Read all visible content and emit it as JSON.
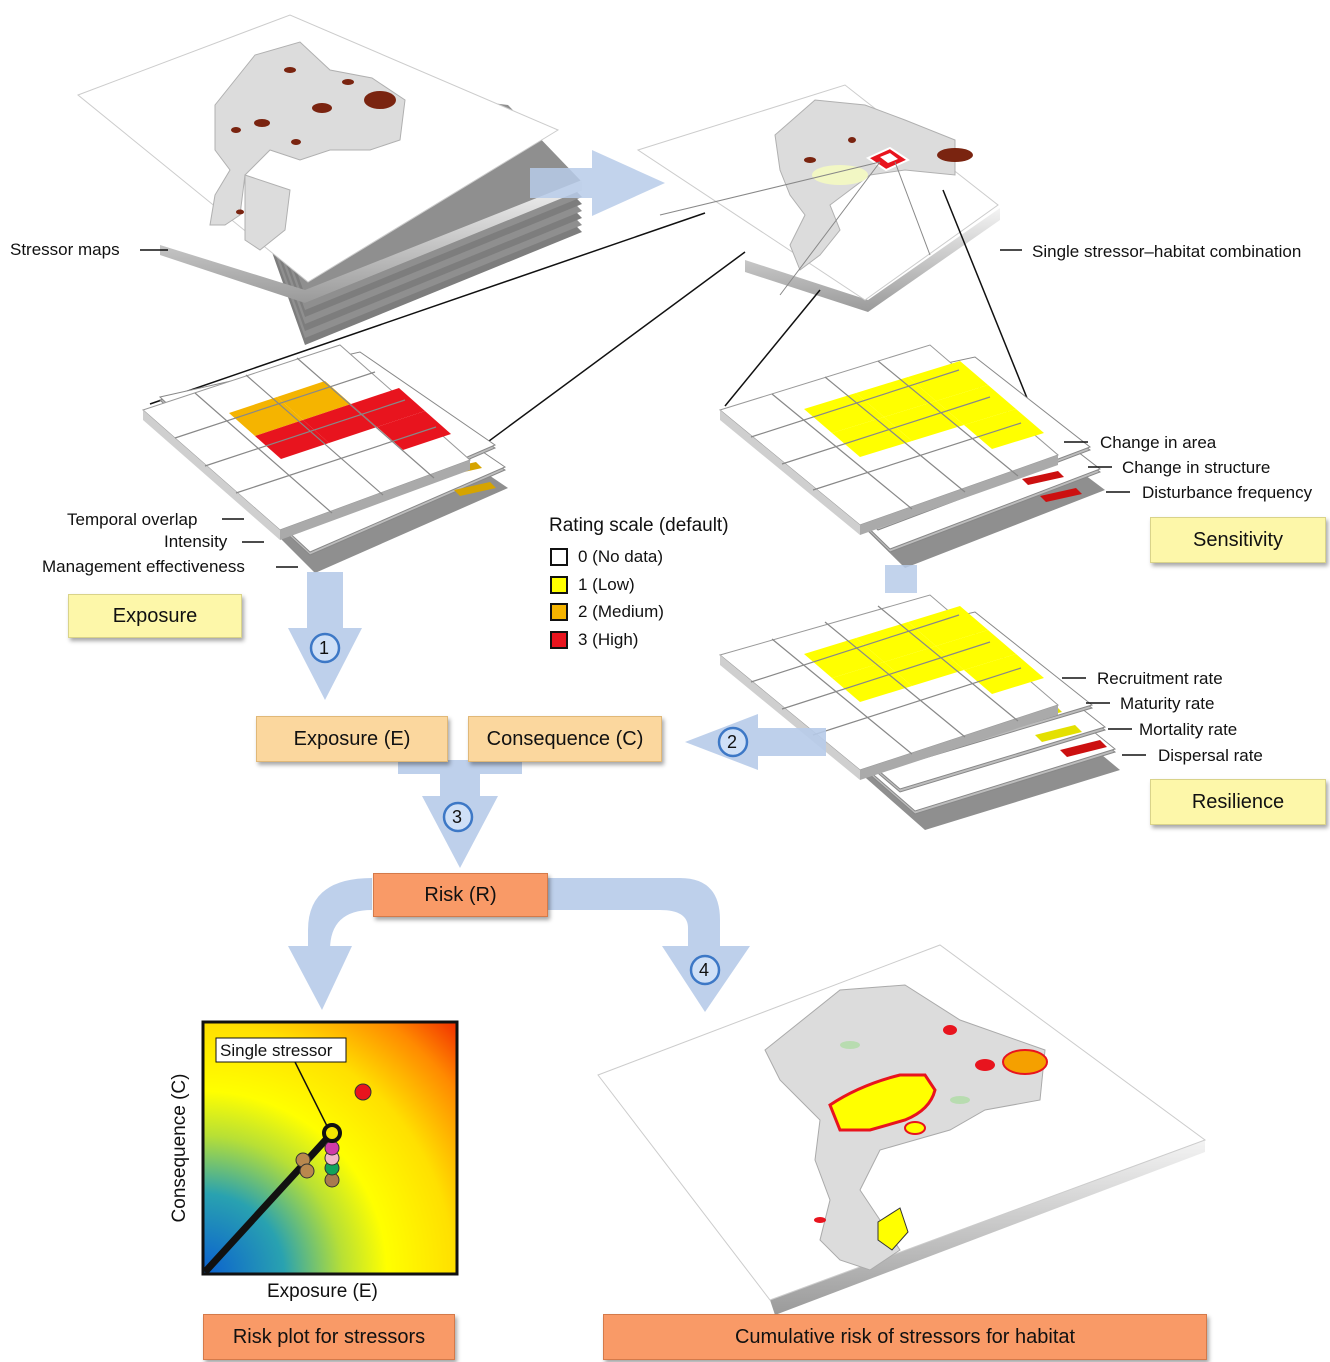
{
  "labels": {
    "stressor_maps": "Stressor maps",
    "single_combo": "Single stressor–habitat combination",
    "temporal_overlap": "Temporal overlap",
    "intensity": "Intensity",
    "management_effectiveness": "Management effectiveness",
    "change_area": "Change in area",
    "change_structure": "Change in structure",
    "disturbance_frequency": "Disturbance frequency",
    "recruitment_rate": "Recruitment rate",
    "maturity_rate": "Maturity rate",
    "mortality_rate": "Mortality rate",
    "dispersal_rate": "Dispersal rate"
  },
  "boxes": {
    "exposure": "Exposure",
    "sensitivity": "Sensitivity",
    "resilience": "Resilience",
    "exposure_e": "Exposure (E)",
    "consequence_c": "Consequence (C)",
    "risk_r": "Risk (R)",
    "risk_plot": "Risk plot for stressors",
    "cumulative_risk": "Cumulative risk of stressors for habitat"
  },
  "legend": {
    "title": "Rating scale (default)",
    "items": [
      {
        "label": "0 (No data)",
        "color": "#ffffff"
      },
      {
        "label": "1 (Low)",
        "color": "#ffff00"
      },
      {
        "label": "2 (Medium)",
        "color": "#f5b400"
      },
      {
        "label": "3 (High)",
        "color": "#e8141e"
      }
    ]
  },
  "steps": [
    "1",
    "2",
    "3",
    "4"
  ],
  "risk_plot": {
    "xlabel": "Exposure (E)",
    "ylabel": "Consequence (C)",
    "annotation": "Single stressor"
  },
  "colors": {
    "arrow": "#b7cbe9",
    "map_gray": "#dcdcdc",
    "stressor_brown": "#7a2410",
    "high": "#e8141e",
    "medium": "#f5b400",
    "low": "#ffff00"
  }
}
